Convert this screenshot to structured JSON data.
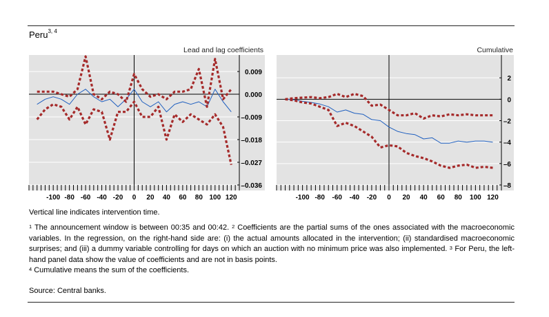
{
  "header": {
    "country": "Peru",
    "country_sup": "3, 4"
  },
  "chart_data": [
    {
      "type": "line",
      "title": "Lead and lag coefficients",
      "xlabel": "",
      "ylabel": "",
      "x": [
        -120,
        -110,
        -100,
        -90,
        -80,
        -70,
        -60,
        -50,
        -40,
        -30,
        -20,
        -10,
        0,
        10,
        20,
        30,
        40,
        50,
        60,
        70,
        80,
        90,
        100,
        110,
        120
      ],
      "xlim": [
        -130,
        130
      ],
      "ylim": [
        -0.036,
        0.015
      ],
      "xticks": [
        -100,
        -80,
        -60,
        -40,
        -20,
        0,
        20,
        40,
        60,
        80,
        100,
        120
      ],
      "xtick_labels": [
        "-100",
        "-80",
        "-60",
        "-40",
        "-20",
        "0",
        "20",
        "40",
        "60",
        "80",
        "100",
        "120"
      ],
      "yticks": [
        0.009,
        0.0,
        -0.009,
        -0.018,
        -0.027,
        -0.036
      ],
      "ytick_labels": [
        "0.009",
        "0.000",
        "–0.009",
        "–0.018",
        "–0.027",
        "–0.036"
      ],
      "vline_x": 0,
      "grid": "horizontal",
      "series": [
        {
          "name": "Coefficient",
          "style": "solid-blue",
          "values": [
            -0.004,
            -0.002,
            -0.001,
            -0.002,
            -0.004,
            0.0,
            0.002,
            -0.001,
            -0.003,
            -0.002,
            -0.005,
            -0.002,
            0.002,
            -0.003,
            -0.005,
            -0.003,
            -0.007,
            -0.004,
            -0.003,
            -0.004,
            -0.003,
            -0.005,
            0.002,
            -0.003,
            -0.007
          ]
        },
        {
          "name": "Upper band",
          "style": "dashed-red",
          "values": [
            0.001,
            0.001,
            0.001,
            0.0,
            -0.001,
            0.002,
            0.015,
            0.0,
            -0.002,
            0.001,
            0.0,
            -0.003,
            0.008,
            0.002,
            -0.001,
            0.0,
            -0.002,
            0.001,
            0.001,
            0.002,
            0.01,
            -0.005,
            0.014,
            -0.002,
            0.002
          ]
        },
        {
          "name": "Lower band",
          "style": "dashed-red",
          "values": [
            -0.01,
            -0.006,
            -0.004,
            -0.005,
            -0.01,
            -0.005,
            -0.012,
            -0.006,
            -0.007,
            -0.018,
            -0.007,
            -0.007,
            -0.003,
            -0.009,
            -0.009,
            -0.005,
            -0.018,
            -0.008,
            -0.011,
            -0.008,
            -0.01,
            -0.012,
            -0.008,
            -0.013,
            -0.028
          ]
        }
      ]
    },
    {
      "type": "line",
      "title": "Cumulative",
      "xlabel": "",
      "ylabel": "",
      "x": [
        -120,
        -110,
        -100,
        -90,
        -80,
        -70,
        -60,
        -50,
        -40,
        -30,
        -20,
        -10,
        0,
        10,
        20,
        30,
        40,
        50,
        60,
        70,
        80,
        90,
        100,
        110,
        120
      ],
      "xlim": [
        -130,
        130
      ],
      "ylim": [
        -8,
        4
      ],
      "xticks": [
        -100,
        -80,
        -60,
        -40,
        -20,
        0,
        20,
        40,
        60,
        80,
        100,
        120
      ],
      "xtick_labels": [
        "-100",
        "-80",
        "-60",
        "-40",
        "-20",
        "0",
        "20",
        "40",
        "60",
        "80",
        "100",
        "120"
      ],
      "yticks": [
        2,
        0,
        -2,
        -4,
        -6,
        -8
      ],
      "ytick_labels": [
        "2",
        "0",
        "–2",
        "–4",
        "–6",
        "–8"
      ],
      "vline_x": 0,
      "grid": "horizontal",
      "series": [
        {
          "name": "Cumulative coefficient",
          "style": "solid-blue",
          "values": [
            0.0,
            -0.05,
            -0.2,
            -0.3,
            -0.45,
            -0.7,
            -1.2,
            -1.0,
            -1.3,
            -1.4,
            -1.9,
            -2.0,
            -2.6,
            -3.0,
            -3.2,
            -3.3,
            -3.7,
            -3.6,
            -4.1,
            -4.1,
            -3.9,
            -4.0,
            -3.9,
            -3.9,
            -4.0
          ]
        },
        {
          "name": "Upper band",
          "style": "dashed-red",
          "values": [
            0.0,
            0.1,
            0.15,
            0.2,
            0.1,
            0.2,
            0.5,
            0.2,
            0.5,
            0.3,
            -0.6,
            -0.5,
            -1.0,
            -1.5,
            -1.5,
            -1.3,
            -1.8,
            -1.5,
            -1.6,
            -1.4,
            -1.5,
            -1.4,
            -1.5,
            -1.5,
            -1.5
          ]
        },
        {
          "name": "Lower band",
          "style": "dashed-red",
          "values": [
            0.0,
            -0.1,
            -0.3,
            -0.4,
            -0.7,
            -1.0,
            -2.5,
            -2.2,
            -2.5,
            -3.0,
            -3.5,
            -4.5,
            -4.3,
            -4.4,
            -5.0,
            -5.3,
            -5.5,
            -5.8,
            -6.2,
            -6.4,
            -6.2,
            -6.1,
            -6.4,
            -6.3,
            -6.4
          ]
        }
      ]
    }
  ],
  "notes": {
    "vertical_line": "Vertical line indicates intervention time.",
    "fn1_num": "1",
    "fn1": " The announcement window is between 00:35 and 00:42. ",
    "fn2_num": "2",
    "fn2": " Coefficients are the partial sums of the ones associated with the macroeconomic variables. In the regression, on the right-hand side are: (i) the actual amounts allocated in the intervention; (ii) standardised macroeconomic surprises; and (iii) a dummy variable controlling for days on which an auction with no minimum price was also implemented. ",
    "fn3_num": "3",
    "fn3": " For Peru, the left-hand panel data show the value of coefficients and are not in basis points.",
    "fn4_num": "4",
    "fn4": " Cumulative means the sum of the coefficients.",
    "source": "Source: Central banks."
  }
}
